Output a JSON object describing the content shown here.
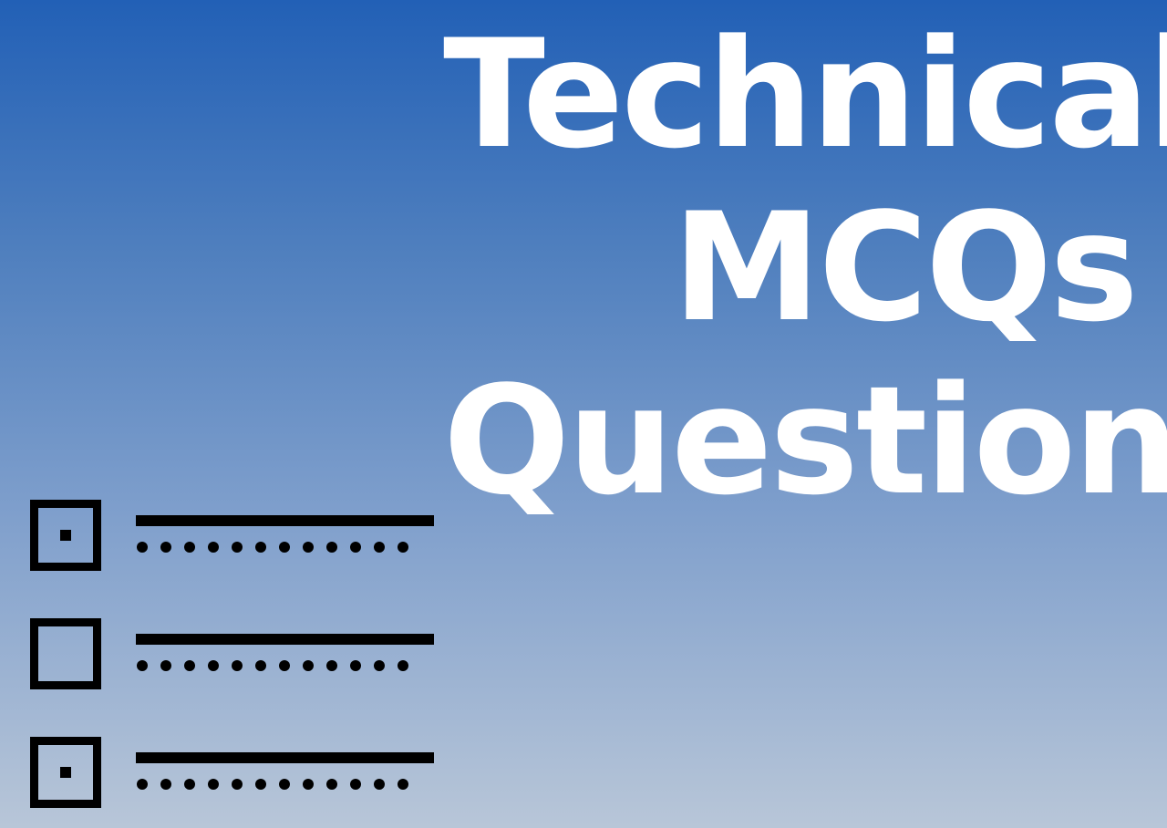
{
  "title": {
    "lines": [
      "Technical",
      "MCQs",
      "Questions"
    ],
    "color": "#ffffff"
  },
  "background": {
    "top_color": "#2260b6",
    "bottom_color": "#b8c6d8"
  },
  "checklist": {
    "items": [
      {
        "checked": true
      },
      {
        "checked": false
      },
      {
        "checked": true
      }
    ],
    "icon_color": "#000000"
  }
}
